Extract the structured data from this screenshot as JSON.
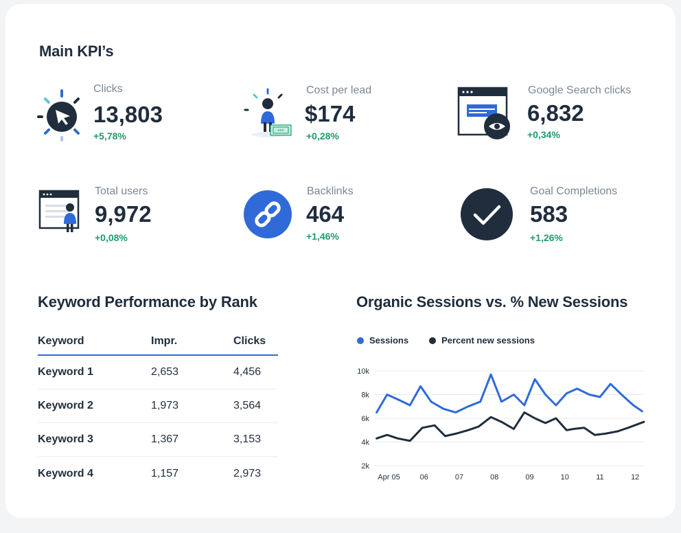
{
  "kpi_title": "Main KPI’s",
  "kpis": [
    {
      "label": "Clicks",
      "value": "13,803",
      "delta": "+5,78%",
      "icon": "cursor-click-icon"
    },
    {
      "label": "Cost per lead",
      "value": "$174",
      "delta": "+0,28%",
      "icon": "person-money-icon"
    },
    {
      "label": "Google Search clicks",
      "value": "6,832",
      "delta": "+0,34%",
      "icon": "browser-eye-icon"
    },
    {
      "label": "Total users",
      "value": "9,972",
      "delta": "+0,08%",
      "icon": "browser-user-icon"
    },
    {
      "label": "Backlinks",
      "value": "464",
      "delta": "+1,46%",
      "icon": "link-icon"
    },
    {
      "label": "Goal Completions",
      "value": "583",
      "delta": "+1,26%",
      "icon": "checkmark-icon"
    }
  ],
  "keyword_section": {
    "title": "Keyword Performance by Rank",
    "headers": [
      "Keyword",
      "Impr.",
      "Clicks"
    ],
    "rows": [
      [
        "Keyword 1",
        "2,653",
        "4,456"
      ],
      [
        "Keyword 2",
        "1,973",
        "3,564"
      ],
      [
        "Keyword 3",
        "1,367",
        "3,153"
      ],
      [
        "Keyword 4",
        "1,157",
        "2,973"
      ]
    ]
  },
  "chart_section": {
    "title": "Organic Sessions vs. % New Sessions"
  },
  "colors": {
    "accent_blue": "#2f6ad8",
    "navy": "#1f2d3d",
    "positive": "#1e9b6b",
    "label_gray": "#7b8794"
  },
  "chart_data": {
    "type": "line",
    "title": "Organic Sessions vs. % New Sessions",
    "xlabel": "",
    "ylabel": "",
    "y_ticks": [
      "10k",
      "8k",
      "6k",
      "4k",
      "2k"
    ],
    "y_tick_values": [
      10000,
      8000,
      6000,
      4000,
      2000
    ],
    "ylim": [
      2000,
      10000
    ],
    "x_tick_labels": [
      "Apr 05",
      "06",
      "07",
      "08",
      "09",
      "10",
      "11",
      "12"
    ],
    "x_tick_values": [
      0,
      1,
      2,
      3,
      4,
      5,
      6,
      7
    ],
    "xlim": [
      -0.4,
      7.25
    ],
    "legend": "top-left",
    "grid": true,
    "series": [
      {
        "name": "Sessions",
        "color": "#2f6ad8",
        "x": [
          -0.35,
          -0.05,
          0.25,
          0.6,
          0.9,
          1.2,
          1.55,
          1.9,
          2.25,
          2.6,
          2.9,
          3.2,
          3.55,
          3.85,
          4.15,
          4.45,
          4.75,
          5.05,
          5.35,
          5.7,
          6.0,
          6.3,
          6.65,
          6.95,
          7.2
        ],
        "y": [
          6500,
          8000,
          7600,
          7100,
          8700,
          7400,
          6800,
          6500,
          7000,
          7400,
          9700,
          7400,
          8000,
          7100,
          9300,
          8000,
          7100,
          8100,
          8500,
          8000,
          7800,
          8900,
          7900,
          7100,
          6600
        ]
      },
      {
        "name": "Percent new sessions",
        "color": "#1f2d3d",
        "x": [
          -0.35,
          -0.05,
          0.25,
          0.6,
          0.95,
          1.3,
          1.6,
          1.9,
          2.25,
          2.55,
          2.9,
          3.2,
          3.55,
          3.85,
          4.15,
          4.45,
          4.75,
          5.05,
          5.25,
          5.55,
          5.85,
          6.15,
          6.5,
          6.8,
          7.25
        ],
        "y": [
          4300,
          4600,
          4300,
          4100,
          5200,
          5400,
          4500,
          4700,
          5000,
          5300,
          6100,
          5700,
          5100,
          6500,
          6000,
          5600,
          6000,
          5000,
          5100,
          5200,
          4600,
          4700,
          4900,
          5200,
          5700
        ]
      }
    ]
  }
}
